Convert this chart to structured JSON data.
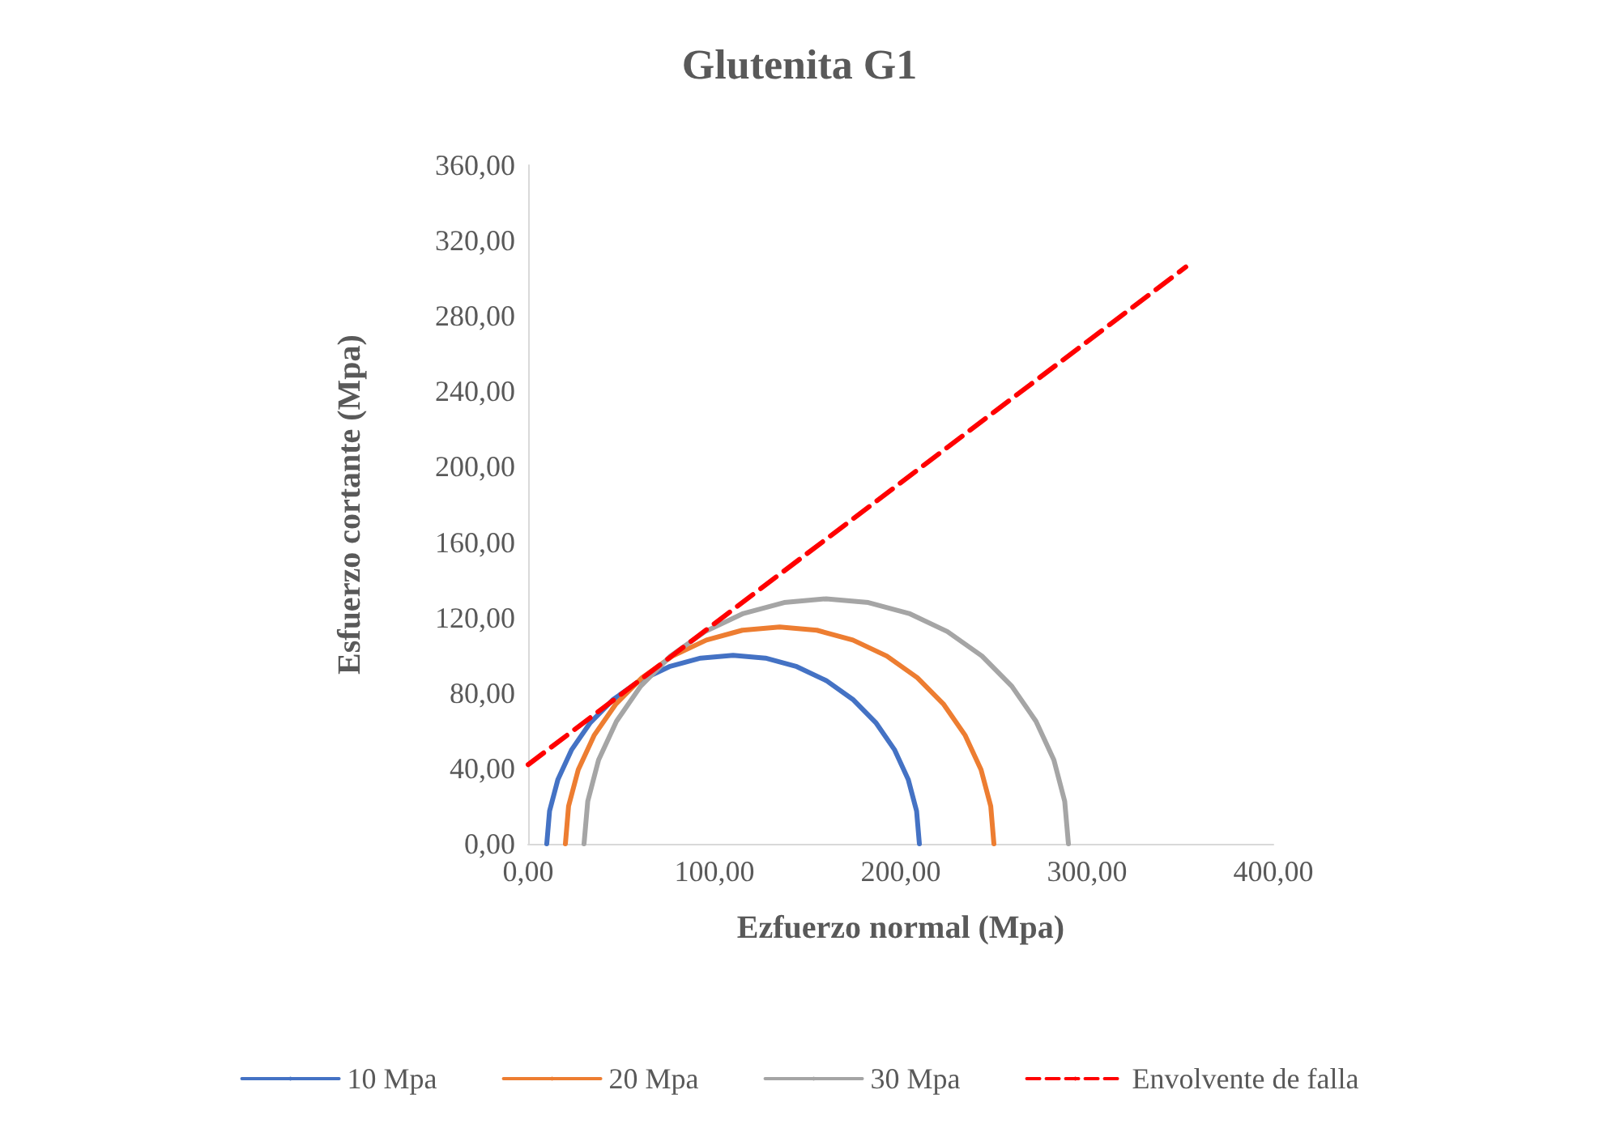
{
  "chart_data": {
    "type": "line",
    "title": "Glutenita G1",
    "xlabel": "Ezfuerzo normal (Mpa)",
    "ylabel": "Esfuerzo cortante (Mpa)",
    "xlim": [
      0,
      400
    ],
    "ylim": [
      0,
      360
    ],
    "xticks": [
      {
        "value": 0,
        "label": "0,00"
      },
      {
        "value": 100,
        "label": "100,00"
      },
      {
        "value": 200,
        "label": "200,00"
      },
      {
        "value": 300,
        "label": "300,00"
      },
      {
        "value": 400,
        "label": "400,00"
      }
    ],
    "yticks": [
      {
        "value": 0,
        "label": "0,00"
      },
      {
        "value": 40,
        "label": "40,00"
      },
      {
        "value": 80,
        "label": "80,00"
      },
      {
        "value": 120,
        "label": "120,00"
      },
      {
        "value": 160,
        "label": "160,00"
      },
      {
        "value": 200,
        "label": "200,00"
      },
      {
        "value": 240,
        "label": "240,00"
      },
      {
        "value": 280,
        "label": "280,00"
      },
      {
        "value": 320,
        "label": "320,00"
      },
      {
        "value": 360,
        "label": "360,00"
      }
    ],
    "grid": false,
    "legend": "bottom",
    "marker": "none",
    "line_style": "solid",
    "series": [
      {
        "name": "10 Mpa",
        "color": "#4472c4",
        "x": [
          10,
          11.5,
          16,
          23.4,
          33.4,
          45.7,
          60,
          75.8,
          92.6,
          110,
          127.4,
          144.2,
          160,
          174.3,
          186.6,
          196.6,
          204,
          208.5,
          210
        ],
        "values": [
          0,
          17.4,
          34.2,
          50,
          64.3,
          76.6,
          86.6,
          94,
          98.5,
          100,
          98.5,
          94,
          86.6,
          76.6,
          64.3,
          50,
          34.2,
          17.4,
          0
        ]
      },
      {
        "name": "20 Mpa",
        "color": "#ed7d31",
        "x": [
          20,
          21.7,
          26.9,
          35.4,
          46.9,
          61.1,
          77.5,
          95.7,
          115,
          135,
          155,
          174.3,
          192.5,
          208.9,
          223.1,
          234.6,
          243.1,
          248.3,
          250
        ],
        "values": [
          0,
          20,
          39.3,
          57.5,
          73.9,
          88.1,
          99.6,
          108.1,
          113.3,
          115,
          113.3,
          108.1,
          99.6,
          88.1,
          73.9,
          57.5,
          39.3,
          20,
          0
        ]
      },
      {
        "name": "30 Mpa",
        "color": "#a5a5a5",
        "x": [
          30,
          32,
          37.8,
          47.4,
          60.4,
          76.4,
          95,
          115.5,
          137.4,
          160,
          182.6,
          204.5,
          225,
          243.6,
          259.6,
          272.6,
          282.2,
          288,
          290
        ],
        "values": [
          0,
          22.6,
          44.5,
          65,
          83.6,
          99.6,
          112.6,
          122.2,
          128,
          130,
          128,
          122.2,
          112.6,
          99.6,
          83.6,
          65,
          44.5,
          22.6,
          0
        ]
      },
      {
        "name": "Envolvente de falla",
        "color": "#ff0000",
        "line_style": "dashed",
        "x": [
          0,
          353
        ],
        "values": [
          42,
          306
        ]
      }
    ]
  }
}
